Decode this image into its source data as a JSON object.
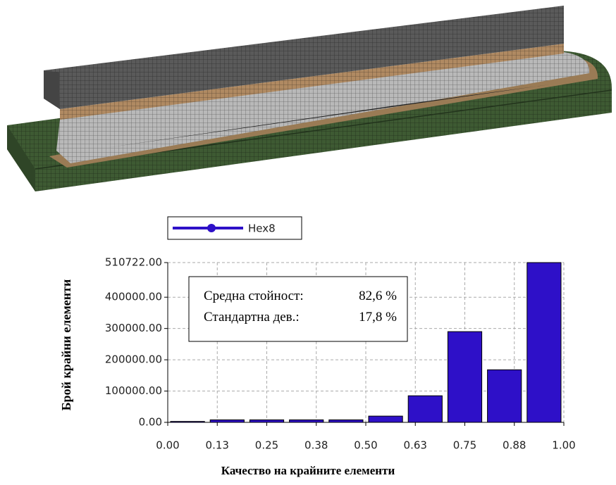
{
  "chart_data": {
    "type": "histogram",
    "xlabel": "Качество на крайните елементи",
    "ylabel": "Брой крайни елементи",
    "bins": [
      0,
      0.1,
      0.2,
      0.3,
      0.4,
      0.5,
      0.6,
      0.7,
      0.8,
      0.9,
      1
    ],
    "series": [
      {
        "name": "Hex8",
        "color": "#2e10c8",
        "values": [
          3000,
          8000,
          8000,
          8000,
          8000,
          20000,
          85000,
          290000,
          168000,
          510722
        ]
      }
    ],
    "xlim": [
      0,
      1
    ],
    "xticks": [
      {
        "value": 0,
        "label": "0.00"
      },
      {
        "value": 0.125,
        "label": "0.13"
      },
      {
        "value": 0.25,
        "label": "0.25"
      },
      {
        "value": 0.375,
        "label": "0.38"
      },
      {
        "value": 0.5,
        "label": "0.50"
      },
      {
        "value": 0.625,
        "label": "0.63"
      },
      {
        "value": 0.75,
        "label": "0.75"
      },
      {
        "value": 0.875,
        "label": "0.88"
      },
      {
        "value": 1,
        "label": "1.00"
      }
    ],
    "ylim": [
      0,
      510722
    ],
    "yticks": [
      {
        "value": 0,
        "label": "0.00"
      },
      {
        "value": 100000,
        "label": "100000.00"
      },
      {
        "value": 200000,
        "label": "200000.00"
      },
      {
        "value": 300000,
        "label": "300000.00"
      },
      {
        "value": 400000,
        "label": "400000.00"
      },
      {
        "value": 510722,
        "label": "510722.00"
      }
    ],
    "grid": true,
    "annotations": [
      [
        "Средна стойност:",
        "82,6 %"
      ],
      [
        "Стандартна дев.:",
        "17,8 %"
      ]
    ]
  }
}
